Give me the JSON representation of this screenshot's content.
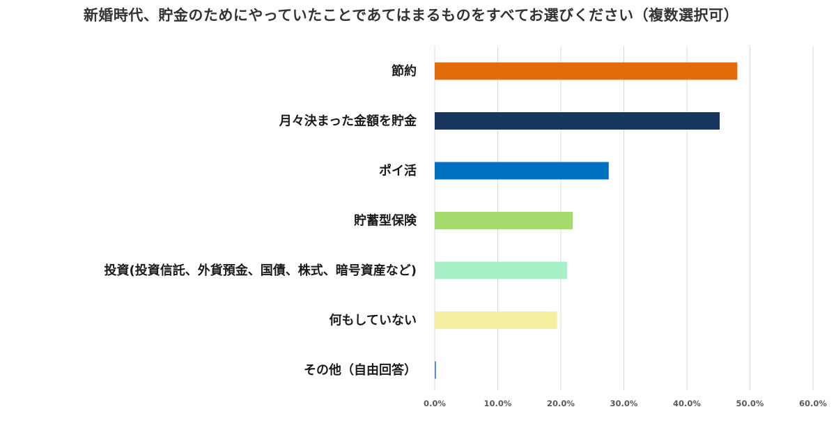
{
  "chart_data": {
    "type": "bar",
    "orientation": "horizontal",
    "title": "新婚時代、貯金のためにやっていたことであてはまるものをすべてお選びください（複数選択可）",
    "categories": [
      "節約",
      "月々決まった金額を貯金",
      "ポイ活",
      "貯蓄型保険",
      "投資(投資信託、外貨預金、国債、株式、暗号資産など)",
      "何もしていない",
      "その他（自由回答）"
    ],
    "values": [
      48.0,
      45.2,
      27.6,
      21.9,
      21.0,
      19.4,
      0.2
    ],
    "colors": [
      "#e36c0a",
      "#17375e",
      "#0070c0",
      "#a3dc6c",
      "#a7f0c8",
      "#f6ef9f",
      "#4f81bd"
    ],
    "xlim": [
      0,
      60
    ],
    "ticks": [
      "0.0%",
      "10.0%",
      "20.0%",
      "30.0%",
      "40.0%",
      "50.0%",
      "60.0%"
    ],
    "grid": true,
    "grid_color": "#d9d9d9"
  }
}
